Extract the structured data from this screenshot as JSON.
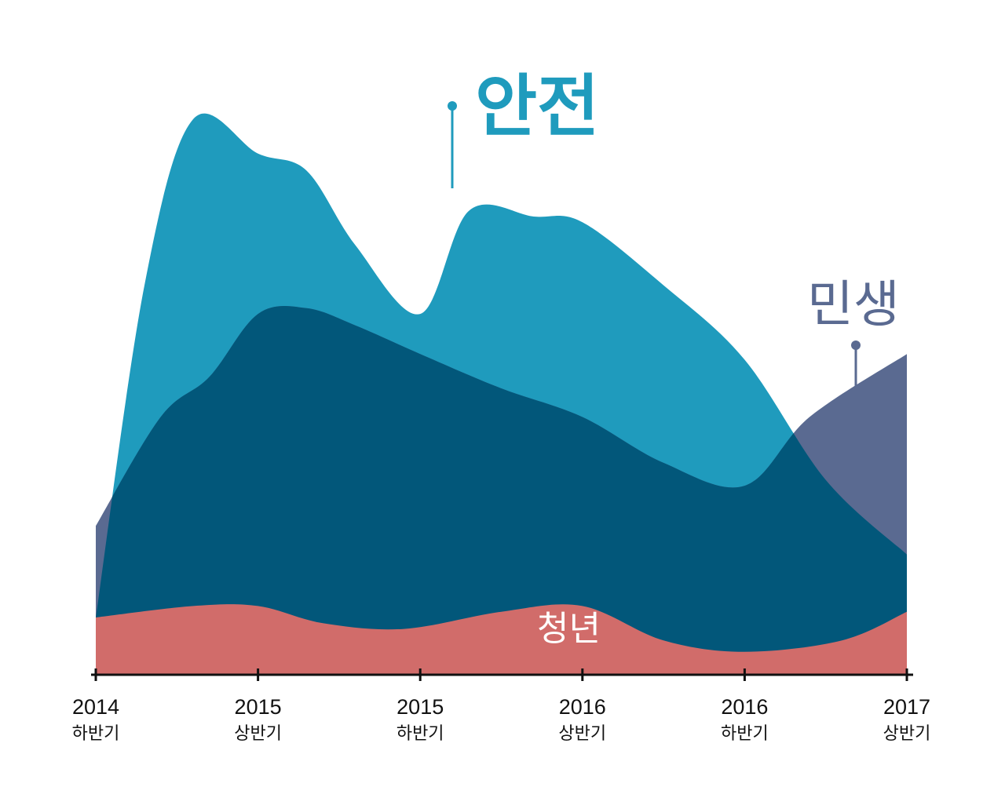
{
  "chart_data": {
    "type": "area",
    "categories": [
      {
        "year": "2014",
        "half": "하반기"
      },
      {
        "year": "2015",
        "half": "상반기"
      },
      {
        "year": "2015",
        "half": "하반기"
      },
      {
        "year": "2016",
        "half": "상반기"
      },
      {
        "year": "2016",
        "half": "하반기"
      },
      {
        "year": "2017",
        "half": "상반기"
      }
    ],
    "ylim": [
      0,
      100
    ],
    "grid": false,
    "legend": "none",
    "series": [
      {
        "name": "안전",
        "color": "#1f9bbd",
        "points": [
          [
            0,
            10
          ],
          [
            0.3,
            68
          ],
          [
            0.6,
            97
          ],
          [
            1.0,
            91
          ],
          [
            1.3,
            88
          ],
          [
            1.6,
            75
          ],
          [
            2.0,
            63
          ],
          [
            2.3,
            81
          ],
          [
            2.7,
            80
          ],
          [
            3.0,
            79
          ],
          [
            3.5,
            68
          ],
          [
            4.0,
            55
          ],
          [
            4.5,
            34
          ],
          [
            5.0,
            21
          ]
        ]
      },
      {
        "name": "민생",
        "color": "#5a6a91",
        "points": [
          [
            0,
            26
          ],
          [
            0.4,
            45
          ],
          [
            0.7,
            52
          ],
          [
            1.0,
            63
          ],
          [
            1.3,
            64
          ],
          [
            1.6,
            61
          ],
          [
            2.0,
            56
          ],
          [
            2.5,
            50
          ],
          [
            3.0,
            45
          ],
          [
            3.5,
            37
          ],
          [
            4.0,
            33
          ],
          [
            4.4,
            45
          ],
          [
            5.0,
            56
          ]
        ]
      },
      {
        "name": "청년",
        "color": "#d16c6a",
        "points": [
          [
            0,
            10
          ],
          [
            0.6,
            12
          ],
          [
            1.0,
            12
          ],
          [
            1.4,
            9
          ],
          [
            1.9,
            8
          ],
          [
            2.5,
            11
          ],
          [
            3.0,
            12
          ],
          [
            3.5,
            6
          ],
          [
            4.0,
            4
          ],
          [
            4.6,
            6
          ],
          [
            5.0,
            11
          ]
        ]
      }
    ],
    "labels": {
      "safety": "안전",
      "livelihood": "민생",
      "youth": "청년"
    }
  }
}
